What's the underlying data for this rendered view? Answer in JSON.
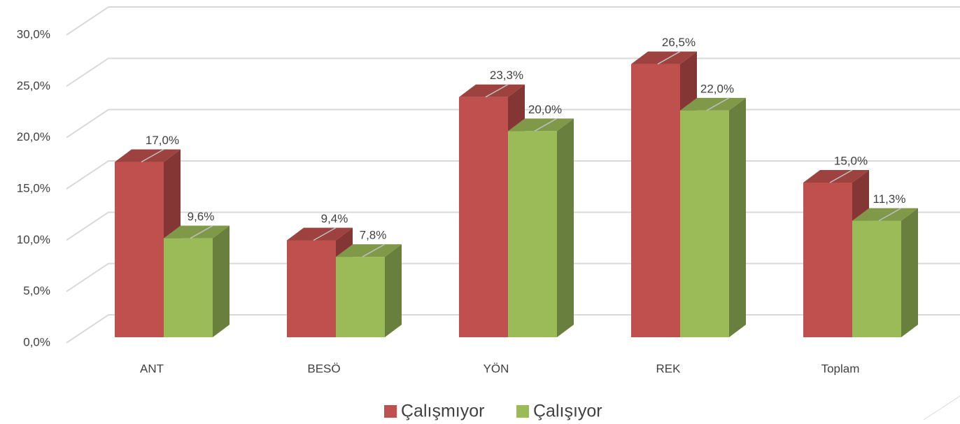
{
  "chart_data": {
    "type": "bar3d",
    "categories": [
      "ANT",
      "BESÖ",
      "YÖN",
      "REK",
      "Toplam"
    ],
    "series": [
      {
        "name": "Çalışmıyor",
        "color": "#c0504d",
        "values": [
          17.0,
          9.4,
          23.3,
          26.5,
          15.0
        ],
        "value_labels": [
          "17,0%",
          "9,4%",
          "23,3%",
          "26,5%",
          "15,0%"
        ]
      },
      {
        "name": "Çalışıyor",
        "color": "#9bbb59",
        "values": [
          9.6,
          7.8,
          20.0,
          22.0,
          11.3
        ],
        "value_labels": [
          "9,6%",
          "7,8%",
          "20,0%",
          "22,0%",
          "11,3%"
        ]
      }
    ],
    "ylim": [
      0,
      30
    ],
    "yticks": [
      {
        "value": 0,
        "label": "0,0%"
      },
      {
        "value": 5,
        "label": "5,0%"
      },
      {
        "value": 10,
        "label": "10,0%"
      },
      {
        "value": 15,
        "label": "15,0%"
      },
      {
        "value": 20,
        "label": "20,0%"
      },
      {
        "value": 25,
        "label": "25,0%"
      },
      {
        "value": 30,
        "label": "30,0%"
      }
    ],
    "grid": true,
    "legend": "bottom"
  }
}
